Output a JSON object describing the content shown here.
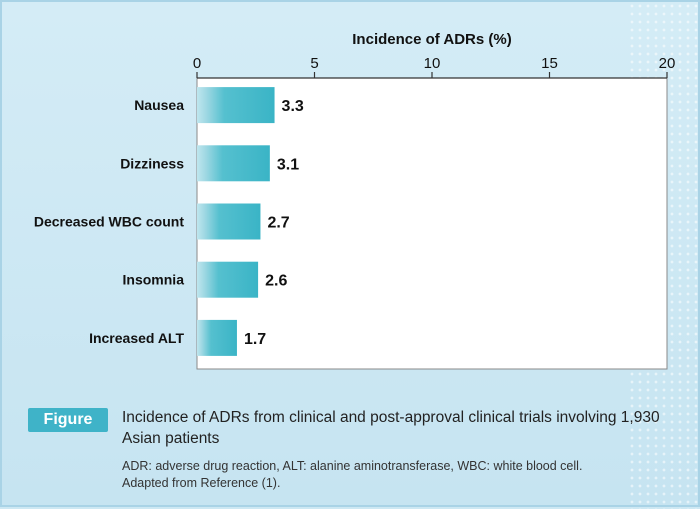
{
  "chart_data": {
    "type": "bar",
    "orientation": "horizontal",
    "title": "Incidence of ADRs (%)",
    "categories": [
      "Nausea",
      "Dizziness",
      "Decreased WBC count",
      "Insomnia",
      "Increased ALT"
    ],
    "values": [
      3.3,
      3.1,
      2.7,
      2.6,
      1.7
    ],
    "value_labels": [
      "3.3",
      "3.1",
      "2.7",
      "2.6",
      "1.7"
    ],
    "xlim": [
      0,
      20
    ],
    "ticks": [
      0,
      5,
      10,
      15,
      20
    ],
    "tick_labels": [
      "0",
      "5",
      "10",
      "15",
      "20"
    ],
    "axis_position": "top",
    "grid": false,
    "bar_color": "#3fb8c8"
  },
  "caption": {
    "badge": "Figure",
    "title": "Incidence of ADRs from clinical and post-approval clinical trials involving 1,930 Asian patients",
    "note_line1": "ADR: adverse drug reaction, ALT: alanine aminotransferase, WBC: white blood cell.",
    "note_line2": "Adapted from Reference (1)."
  }
}
